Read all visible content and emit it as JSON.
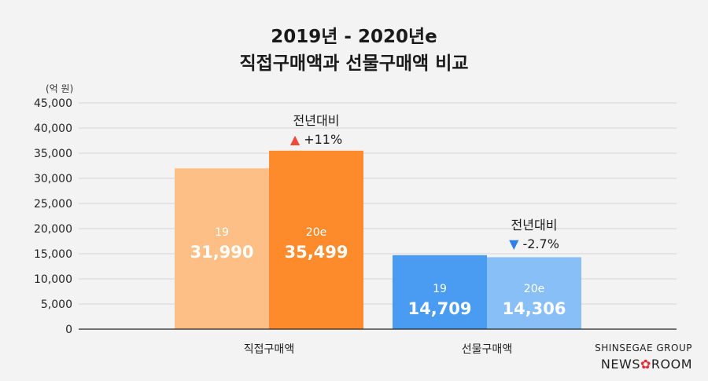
{
  "chart_data": {
    "type": "bar",
    "title_line1": "2019년 - 2020년e",
    "title_line2": "직접구매액과 선물구매액 비교",
    "unit": "(억 원)",
    "ylim": [
      0,
      45000
    ],
    "yticks": [
      "0",
      "5,000",
      "10,000",
      "15,000",
      "20,000",
      "25,000",
      "30,000",
      "35,000",
      "40,000",
      "45,000"
    ],
    "ytick_values": [
      0,
      5000,
      10000,
      15000,
      20000,
      25000,
      30000,
      35000,
      40000,
      45000
    ],
    "grid": true,
    "categories": [
      "직접구매액",
      "선물구매액"
    ],
    "groups": [
      {
        "category": "직접구매액",
        "bars": [
          {
            "year": "19",
            "value": 31990,
            "label": "31,990",
            "color": "#fdbf85"
          },
          {
            "year": "20e",
            "value": 35499,
            "label": "35,499",
            "color": "#fd8a2b"
          }
        ],
        "annotation": {
          "title": "전년대비",
          "direction": "up",
          "marker": "▲",
          "marker_color": "#f04a3c",
          "change": "+11%"
        }
      },
      {
        "category": "선물구매액",
        "bars": [
          {
            "year": "19",
            "value": 14709,
            "label": "14,709",
            "color": "#4a9cf3"
          },
          {
            "year": "20e",
            "value": 14306,
            "label": "14,306",
            "color": "#87bff6"
          }
        ],
        "annotation": {
          "title": "전년대비",
          "direction": "down",
          "marker": "▼",
          "marker_color": "#2f7fe6",
          "change": "-2.7%"
        }
      }
    ]
  },
  "brand": {
    "top": "SHINSEGAE GROUP",
    "news": "NEWS",
    "room": "ROOM",
    "flower": "✿",
    "flower_color": "#e52c35"
  }
}
